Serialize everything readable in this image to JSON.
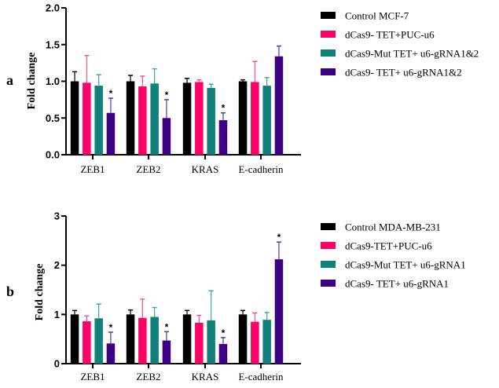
{
  "colors": [
    "#000000",
    "#ff0066",
    "#11807a",
    "#3d0082"
  ],
  "error_colors": [
    "#000000",
    "#ff4d94",
    "#3fa6a0",
    "#4b3aa8"
  ],
  "chart_data": [
    {
      "type": "bar",
      "panel_label": "a",
      "title": "",
      "xlabel": "",
      "ylabel": "Fold change",
      "ylim": [
        0,
        2.0
      ],
      "yticks": [
        "0.0",
        "0.5",
        "1.0",
        "1.5",
        "2.0"
      ],
      "ytick_values": [
        0,
        0.5,
        1.0,
        1.5,
        2.0
      ],
      "grid": false,
      "legend_position": "right",
      "categories": [
        "ZEB1",
        "ZEB2",
        "KRAS",
        "E-cadherin"
      ],
      "series": [
        {
          "name": "Control MCF-7",
          "values": [
            1.0,
            1.0,
            0.98,
            1.0
          ],
          "errors": [
            0.13,
            0.08,
            0.06,
            0.02
          ],
          "significant": [
            false,
            false,
            false,
            false
          ]
        },
        {
          "name": "dCas9- TET+PUC-u6",
          "values": [
            0.98,
            0.93,
            0.99,
            0.99
          ],
          "errors": [
            0.37,
            0.14,
            0.03,
            0.28
          ],
          "significant": [
            false,
            false,
            false,
            false
          ]
        },
        {
          "name": "dCas9-Mut TET+ u6-gRNA1&2",
          "values": [
            0.94,
            0.97,
            0.91,
            0.94
          ],
          "errors": [
            0.15,
            0.2,
            0.05,
            0.11
          ],
          "significant": [
            false,
            false,
            false,
            false
          ]
        },
        {
          "name": "dCas9- TET+ u6-gRNA1&2",
          "values": [
            0.57,
            0.5,
            0.47,
            1.34
          ],
          "errors": [
            0.2,
            0.25,
            0.1,
            0.14
          ],
          "significant": [
            true,
            true,
            true,
            false
          ]
        }
      ],
      "significance_marker": "*"
    },
    {
      "type": "bar",
      "panel_label": "b",
      "title": "",
      "xlabel": "",
      "ylabel": "Fold change",
      "ylim": [
        0,
        3
      ],
      "yticks": [
        "0",
        "1",
        "2",
        "3"
      ],
      "ytick_values": [
        0,
        1,
        2,
        3
      ],
      "grid": false,
      "legend_position": "right",
      "categories": [
        "ZEB1",
        "ZEB2",
        "KRAS",
        "E-cadherin"
      ],
      "series": [
        {
          "name": "Control MDA-MB-231",
          "values": [
            1.0,
            1.0,
            1.0,
            1.0
          ],
          "errors": [
            0.08,
            0.09,
            0.08,
            0.08
          ],
          "significant": [
            false,
            false,
            false,
            false
          ]
        },
        {
          "name": "dCas9-TET+PUC-u6",
          "values": [
            0.86,
            0.93,
            0.83,
            0.85
          ],
          "errors": [
            0.11,
            0.38,
            0.15,
            0.18
          ],
          "significant": [
            false,
            false,
            false,
            false
          ]
        },
        {
          "name": "dCas9-Mut TET+ u6-gRNA1",
          "values": [
            0.92,
            0.95,
            0.88,
            0.89
          ],
          "errors": [
            0.29,
            0.19,
            0.6,
            0.15
          ],
          "significant": [
            false,
            false,
            false,
            false
          ]
        },
        {
          "name": "dCas9- TET+ u6-gRNA1",
          "values": [
            0.41,
            0.47,
            0.4,
            2.12
          ],
          "errors": [
            0.23,
            0.18,
            0.13,
            0.35
          ],
          "significant": [
            true,
            true,
            true,
            true
          ]
        }
      ],
      "significance_marker": "*"
    }
  ]
}
